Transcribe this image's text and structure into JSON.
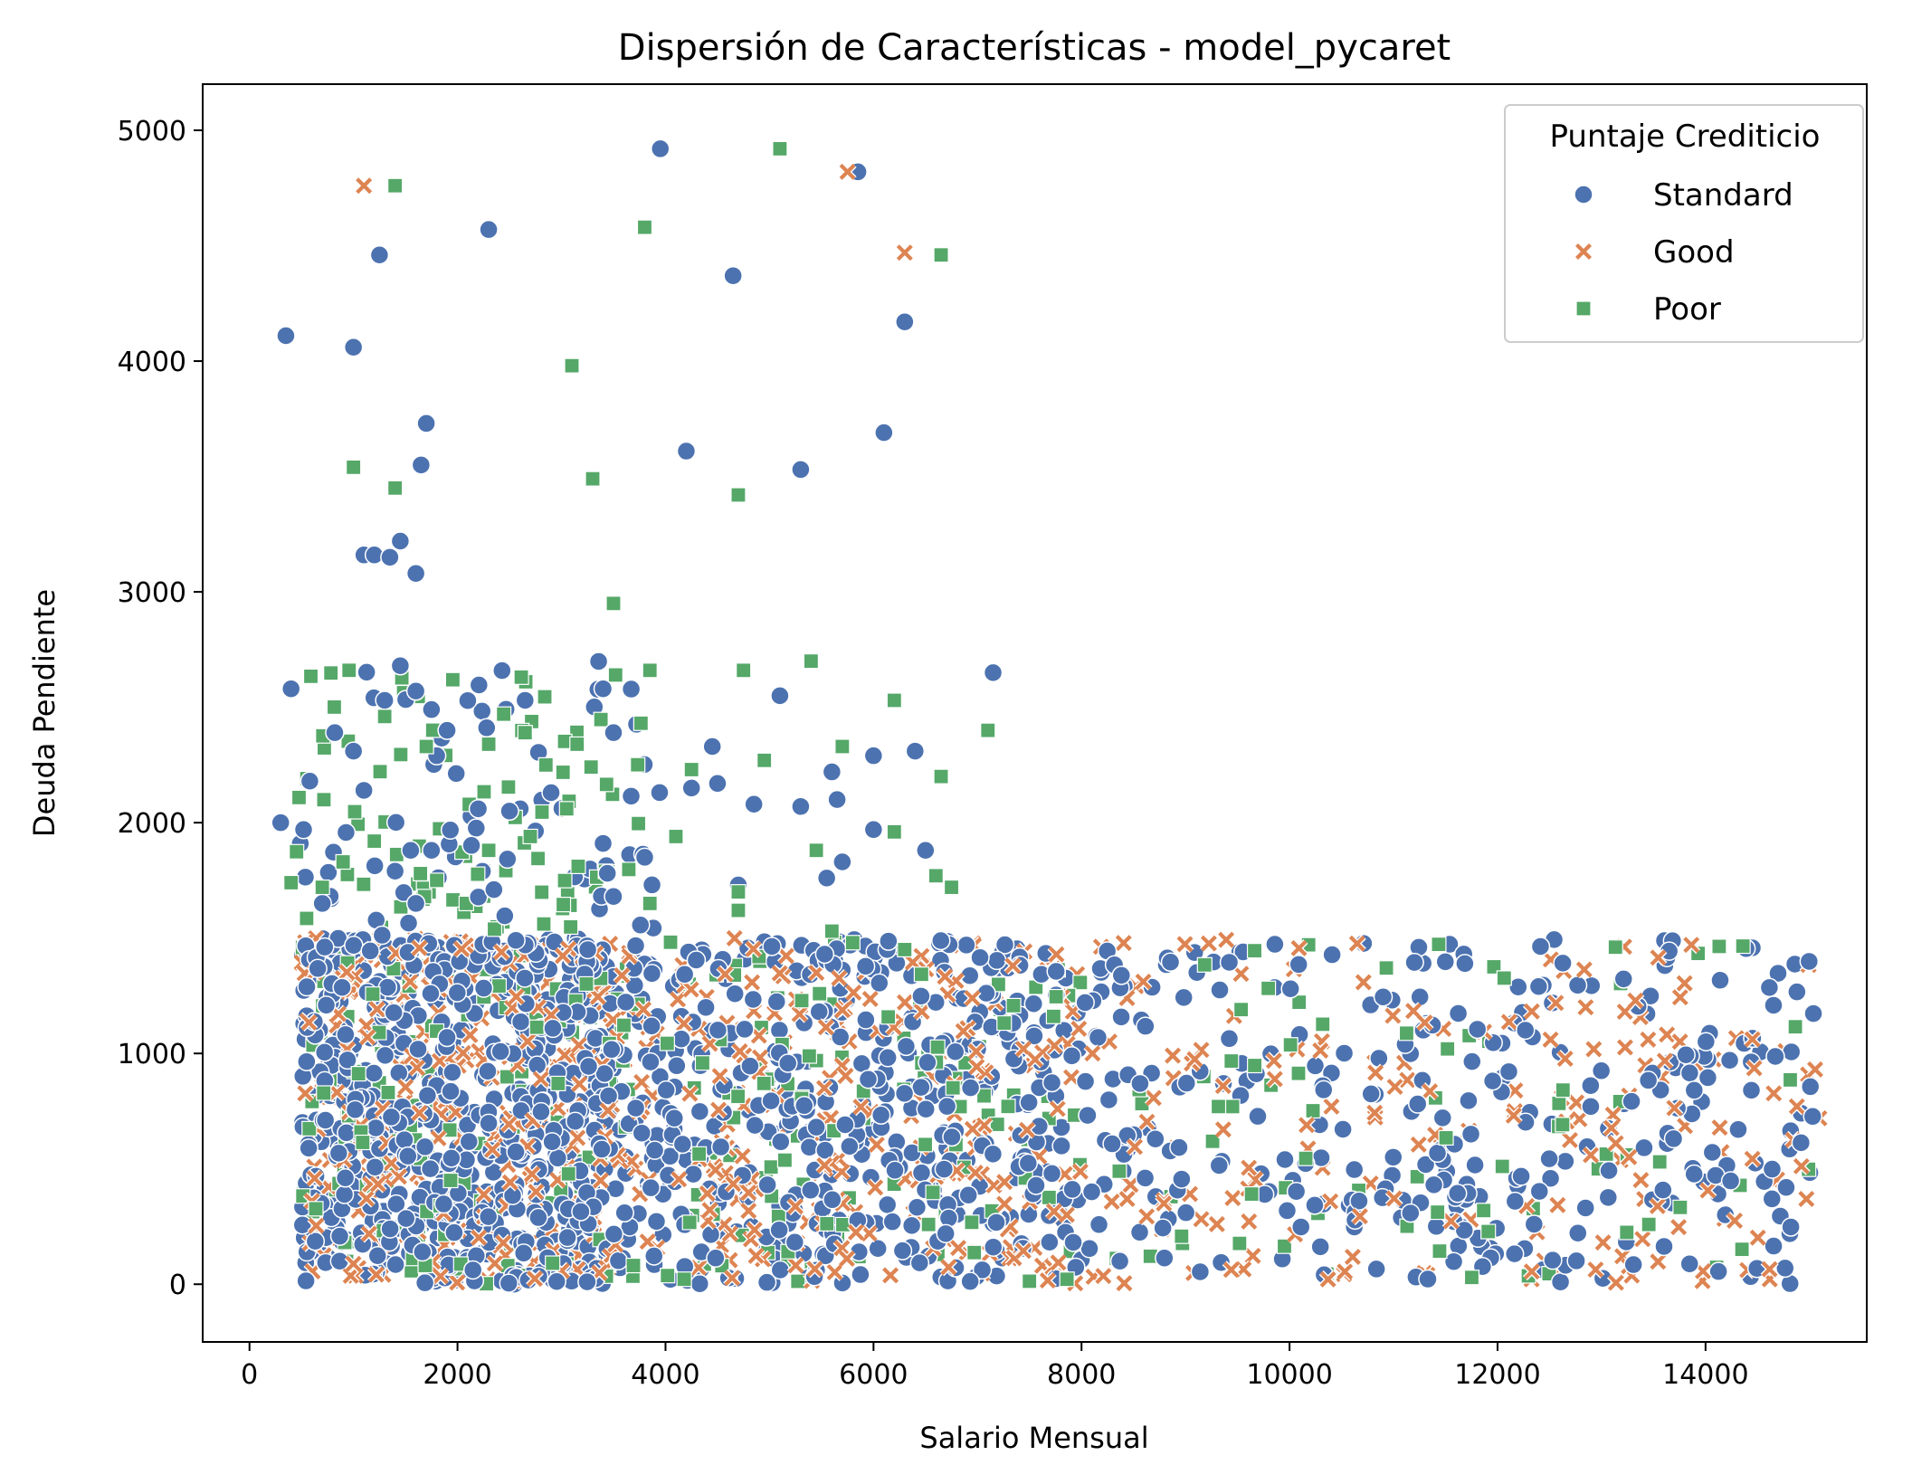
{
  "chart_data": {
    "type": "scatter",
    "title": "Dispersión de Características - model_pycaret",
    "xlabel": "Salario Mensual",
    "ylabel": "Deuda Pendiente",
    "xlim": [
      -450,
      15550
    ],
    "ylim": [
      -250,
      5200
    ],
    "xticks": [
      0,
      2000,
      4000,
      6000,
      8000,
      10000,
      12000,
      14000
    ],
    "xtick_labels": [
      "0",
      "2000",
      "4000",
      "6000",
      "8000",
      "10000",
      "12000",
      "14000"
    ],
    "yticks": [
      0,
      1000,
      2000,
      3000,
      4000,
      5000
    ],
    "ytick_labels": [
      "0",
      "1000",
      "2000",
      "3000",
      "4000",
      "5000"
    ],
    "grid": false,
    "legend": {
      "title": "Puntaje Crediticio",
      "placement": "top-right",
      "entries": [
        "Standard",
        "Good",
        "Poor"
      ]
    },
    "series": [
      {
        "name": "Standard",
        "marker": "circle",
        "color": "#4c72b0",
        "points": [
          [
            350,
            4110
          ],
          [
            1000,
            4060
          ],
          [
            1250,
            4460
          ],
          [
            1700,
            3730
          ],
          [
            1650,
            3550
          ],
          [
            1100,
            3160
          ],
          [
            1200,
            3160
          ],
          [
            1350,
            3150
          ],
          [
            1450,
            3220
          ],
          [
            1600,
            3080
          ],
          [
            4200,
            3610
          ],
          [
            4650,
            4370
          ],
          [
            5300,
            3530
          ],
          [
            5850,
            4820
          ],
          [
            6100,
            3690
          ],
          [
            6300,
            4170
          ],
          [
            3950,
            4920
          ],
          [
            2300,
            4570
          ],
          [
            7150,
            2650
          ],
          [
            300,
            2000
          ],
          [
            400,
            2580
          ],
          [
            520,
            1970
          ],
          [
            580,
            2180
          ],
          [
            700,
            1650
          ],
          [
            820,
            2390
          ],
          [
            1000,
            2310
          ],
          [
            1100,
            2140
          ],
          [
            1300,
            2530
          ],
          [
            1450,
            2680
          ],
          [
            1600,
            2570
          ],
          [
            1750,
            2490
          ],
          [
            1800,
            2290
          ],
          [
            1900,
            2400
          ],
          [
            1550,
            1880
          ],
          [
            1750,
            1880
          ],
          [
            1400,
            1790
          ],
          [
            1600,
            1650
          ],
          [
            2200,
            2060
          ],
          [
            2350,
            1710
          ],
          [
            2500,
            2050
          ],
          [
            2650,
            2530
          ],
          [
            2900,
            2130
          ],
          [
            3400,
            2580
          ],
          [
            3500,
            2390
          ],
          [
            3400,
            1910
          ],
          [
            3500,
            1680
          ],
          [
            3800,
            1850
          ],
          [
            4250,
            2150
          ],
          [
            4450,
            2330
          ],
          [
            4500,
            2170
          ],
          [
            4850,
            2080
          ],
          [
            5100,
            2550
          ],
          [
            5300,
            2070
          ],
          [
            5600,
            2220
          ],
          [
            5650,
            2100
          ],
          [
            5700,
            1830
          ],
          [
            5550,
            1760
          ],
          [
            6000,
            2290
          ],
          [
            6000,
            1970
          ],
          [
            6400,
            2310
          ],
          [
            6500,
            1880
          ],
          [
            4700,
            1730
          ]
        ]
      },
      {
        "name": "Good",
        "marker": "x",
        "color": "#dd8452",
        "points": [
          [
            1100,
            4760
          ],
          [
            5750,
            4820
          ],
          [
            6300,
            4470
          ]
        ]
      },
      {
        "name": "Poor",
        "marker": "square",
        "color": "#55a868",
        "points": [
          [
            1400,
            4760
          ],
          [
            5100,
            4920
          ],
          [
            3800,
            4580
          ],
          [
            6650,
            4460
          ],
          [
            3100,
            3980
          ],
          [
            1000,
            3540
          ],
          [
            3300,
            3490
          ],
          [
            1400,
            3450
          ],
          [
            4700,
            3420
          ],
          [
            3500,
            2950
          ],
          [
            5400,
            2700
          ],
          [
            4750,
            2660
          ],
          [
            3850,
            2660
          ],
          [
            7100,
            2400
          ],
          [
            6200,
            2530
          ],
          [
            6650,
            2200
          ],
          [
            5700,
            2330
          ],
          [
            4950,
            2270
          ],
          [
            4250,
            2230
          ],
          [
            2850,
            2250
          ],
          [
            3150,
            2340
          ],
          [
            2650,
            2390
          ],
          [
            2300,
            2340
          ],
          [
            1300,
            2460
          ],
          [
            1700,
            2330
          ],
          [
            1200,
            1920
          ],
          [
            1800,
            1750
          ],
          [
            2300,
            1880
          ],
          [
            2700,
            1940
          ],
          [
            3050,
            2060
          ],
          [
            4100,
            1940
          ],
          [
            4700,
            1700
          ],
          [
            5450,
            1880
          ],
          [
            6600,
            1770
          ],
          [
            6750,
            1720
          ],
          [
            6200,
            1960
          ],
          [
            3850,
            1650
          ],
          [
            4700,
            1620
          ],
          [
            5600,
            1530
          ],
          [
            400,
            1740
          ],
          [
            700,
            1720
          ],
          [
            900,
            1830
          ],
          [
            5800,
            1480
          ],
          [
            6300,
            1450
          ]
        ]
      }
    ],
    "note_dense": true
  }
}
